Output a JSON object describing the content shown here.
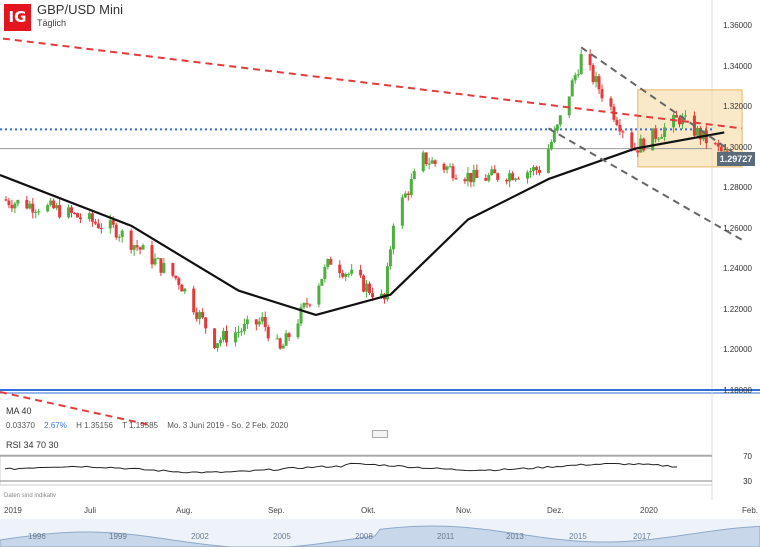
{
  "header": {
    "logo_text": "IG",
    "title": "GBP/USD Mini",
    "subtitle": "Täglich"
  },
  "indicators": {
    "ma_label": "MA  40",
    "rsi_label": "RSI  34  70  30",
    "stats": {
      "change": "0.03370",
      "change_pct": "2.67%",
      "high": "H 1.35156",
      "low": "T 1.19585",
      "range": "Mo. 3 Juni 2019 - So. 2 Feb. 2020"
    }
  },
  "disclaimer": "Daten sind indikativ",
  "last_price_label": "1.29727",
  "price_axis_labels": [
    "1.36000",
    "1.34000",
    "1.32000",
    "1.30000",
    "1.28000",
    "1.26000",
    "1.24000",
    "1.22000",
    "1.20000",
    "1.18000"
  ],
  "rsi_axis_labels": [
    "70",
    "30"
  ],
  "time_axis_labels": [
    "2019",
    "Juli",
    "Aug.",
    "Sep.",
    "Okt.",
    "Nov.",
    "Dez.",
    "2020",
    "Feb."
  ],
  "navigator_years": [
    "1996",
    "1999",
    "2002",
    "2005",
    "2008",
    "2011",
    "2013",
    "2015",
    "2017"
  ],
  "colors": {
    "up": "#4caf3e",
    "down": "#e33b3b",
    "ma": "#111111",
    "resistance": "#e33b3b",
    "channel": "#666666",
    "level": "#2f6fd6",
    "zone": "#f6d79b"
  },
  "chart_data": {
    "type": "candlestick",
    "symbol": "GBP/USD Mini",
    "interval": "Täglich",
    "y_range": [
      1.18,
      1.36
    ],
    "last": 1.29727,
    "high": 1.35156,
    "low": 1.19585,
    "ma_period": 40,
    "rsi_period": 34,
    "rsi_levels": [
      70,
      30
    ],
    "approx_close_path": [
      [
        "2019-06-01",
        1.275
      ],
      [
        "2019-06-20",
        1.27
      ],
      [
        "2019-07-10",
        1.26
      ],
      [
        "2019-07-31",
        1.235
      ],
      [
        "2019-08-12",
        1.205
      ],
      [
        "2019-08-28",
        1.215
      ],
      [
        "2019-09-03",
        1.2
      ],
      [
        "2019-09-20",
        1.245
      ],
      [
        "2019-10-08",
        1.225
      ],
      [
        "2019-10-11",
        1.265
      ],
      [
        "2019-10-21",
        1.295
      ],
      [
        "2019-11-08",
        1.285
      ],
      [
        "2019-11-29",
        1.29
      ],
      [
        "2019-12-05",
        1.31
      ],
      [
        "2019-12-13",
        1.345
      ],
      [
        "2019-12-31",
        1.3
      ],
      [
        "2020-01-15",
        1.315
      ],
      [
        "2020-01-30",
        1.297
      ]
    ],
    "approx_ma40_path": [
      [
        "2019-06-01",
        1.287
      ],
      [
        "2019-07-15",
        1.262
      ],
      [
        "2019-08-20",
        1.23
      ],
      [
        "2019-09-15",
        1.218
      ],
      [
        "2019-10-10",
        1.228
      ],
      [
        "2019-11-05",
        1.265
      ],
      [
        "2019-12-02",
        1.285
      ],
      [
        "2019-12-31",
        1.3
      ],
      [
        "2020-01-30",
        1.308
      ]
    ],
    "trendlines": [
      {
        "name": "resistance",
        "style": "dashed",
        "from": [
          "2019-05-01",
          1.36
        ],
        "to": [
          "2020-02-05",
          1.31
        ]
      },
      {
        "name": "channel-upper",
        "style": "dashed",
        "from": [
          "2019-12-13",
          1.35
        ],
        "to": [
          "2020-02-05",
          1.295
        ]
      },
      {
        "name": "channel-lower",
        "style": "dashed",
        "from": [
          "2019-12-02",
          1.31
        ],
        "to": [
          "2020-02-05",
          1.255
        ]
      }
    ],
    "horizontal_levels": [
      1.3095,
      1.3,
      1.181
    ],
    "zones": [
      {
        "from_date": "2020-01-01",
        "to_date": "2020-02-05",
        "low": 1.291,
        "high": 1.329
      }
    ]
  }
}
